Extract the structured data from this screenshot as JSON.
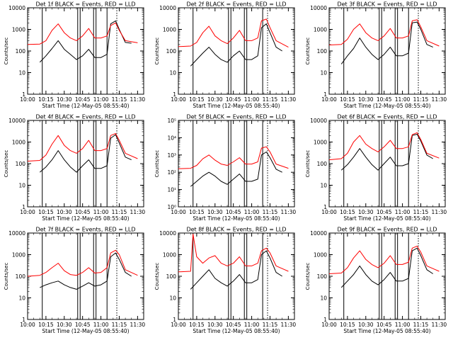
{
  "figure": {
    "grid": "3x3",
    "xlabel": "Start Time (12-May-05 08:55:40)",
    "ylabel": "Counts/sec",
    "x_ticks": [
      "10:00",
      "10:15",
      "10:30",
      "10:45",
      "11:00",
      "11:15",
      "11:30"
    ],
    "y_ticks_decimal": [
      "1",
      "10",
      "100",
      "1000",
      "10000"
    ],
    "y_ticks_exp": [
      "10⁰",
      "10¹",
      "10²",
      "10³",
      "10⁴",
      "10⁵"
    ],
    "events_color": "#000000",
    "lld_color": "#ff0000"
  },
  "chart_data": [
    {
      "type": "line",
      "title": "Det 1f BLACK = Events, RED = LLD",
      "xlim": [
        "10:00",
        "11:35"
      ],
      "ylim": [
        1,
        10000
      ],
      "ylog": true,
      "y_tick_style": "decimal",
      "vlines_solid": [
        "10:12",
        "10:41",
        "10:43",
        "10:54",
        "10:56",
        "11:05"
      ],
      "vlines_dotted": [
        "11:13"
      ],
      "series": [
        {
          "name": "Events",
          "color": "#000000",
          "x": [
            "10:10",
            "10:15",
            "10:20",
            "10:25",
            "10:30",
            "10:35",
            "10:40",
            "10:45",
            "10:50",
            "10:55",
            "11:00",
            "11:05",
            "11:08",
            "11:12",
            "11:15",
            "11:20",
            "11:25"
          ],
          "y": [
            30,
            60,
            130,
            300,
            120,
            70,
            40,
            60,
            120,
            50,
            50,
            70,
            1800,
            2500,
            1000,
            250,
            230
          ]
        },
        {
          "name": "LLD",
          "color": "#ff0000",
          "x": [
            "10:00",
            "10:10",
            "10:15",
            "10:20",
            "10:25",
            "10:30",
            "10:35",
            "10:40",
            "10:45",
            "10:50",
            "10:55",
            "11:00",
            "11:05",
            "11:08",
            "11:12",
            "11:15",
            "11:20",
            "11:30"
          ],
          "y": [
            200,
            210,
            300,
            900,
            1800,
            700,
            400,
            300,
            500,
            1100,
            400,
            400,
            500,
            1500,
            2000,
            900,
            300,
            240
          ]
        }
      ]
    },
    {
      "type": "line",
      "title": "Det 2f BLACK = Events, RED = LLD",
      "xlim": [
        "10:00",
        "11:35"
      ],
      "ylim": [
        1,
        10000
      ],
      "ylog": true,
      "y_tick_style": "decimal",
      "vlines_solid": [
        "10:12",
        "10:41",
        "10:43",
        "10:54",
        "10:56",
        "11:09"
      ],
      "vlines_dotted": [
        "11:13"
      ],
      "series": [
        {
          "name": "Events",
          "color": "#000000",
          "x": [
            "10:10",
            "10:15",
            "10:20",
            "10:25",
            "10:30",
            "10:35",
            "10:40",
            "10:45",
            "10:50",
            "10:55",
            "11:00",
            "11:05",
            "11:08",
            "11:12",
            "11:15",
            "11:20",
            "11:25"
          ],
          "y": [
            20,
            40,
            80,
            150,
            70,
            40,
            30,
            60,
            100,
            40,
            40,
            60,
            1200,
            1800,
            700,
            150,
            100
          ]
        },
        {
          "name": "LLD",
          "color": "#ff0000",
          "x": [
            "10:00",
            "10:10",
            "10:15",
            "10:20",
            "10:25",
            "10:30",
            "10:35",
            "10:40",
            "10:45",
            "10:50",
            "10:55",
            "11:00",
            "11:05",
            "11:08",
            "11:12",
            "11:15",
            "11:20",
            "11:30"
          ],
          "y": [
            160,
            170,
            250,
            700,
            1400,
            500,
            300,
            220,
            400,
            900,
            300,
            300,
            400,
            2500,
            3000,
            1200,
            300,
            150
          ]
        }
      ]
    },
    {
      "type": "line",
      "title": "Det 3f BLACK = Events, RED = LLD",
      "xlim": [
        "10:00",
        "11:35"
      ],
      "ylim": [
        1,
        10000
      ],
      "ylog": true,
      "y_tick_style": "decimal",
      "vlines_solid": [
        "10:12",
        "10:41",
        "10:43",
        "10:54",
        "10:56",
        "11:05"
      ],
      "vlines_dotted": [
        "11:13"
      ],
      "series": [
        {
          "name": "Events",
          "color": "#000000",
          "x": [
            "10:10",
            "10:15",
            "10:20",
            "10:25",
            "10:30",
            "10:35",
            "10:40",
            "10:45",
            "10:50",
            "10:55",
            "11:00",
            "11:05",
            "11:08",
            "11:12",
            "11:15",
            "11:20",
            "11:25"
          ],
          "y": [
            25,
            60,
            130,
            400,
            150,
            70,
            40,
            70,
            150,
            60,
            60,
            80,
            2000,
            2200,
            1000,
            200,
            150
          ]
        },
        {
          "name": "LLD",
          "color": "#ff0000",
          "x": [
            "10:00",
            "10:10",
            "10:15",
            "10:20",
            "10:25",
            "10:30",
            "10:35",
            "10:40",
            "10:45",
            "10:50",
            "10:55",
            "11:00",
            "11:05",
            "11:08",
            "11:12",
            "11:15",
            "11:20",
            "11:30"
          ],
          "y": [
            190,
            200,
            350,
            1000,
            1800,
            700,
            400,
            300,
            500,
            1100,
            400,
            400,
            500,
            2500,
            2800,
            1300,
            300,
            170
          ]
        }
      ]
    },
    {
      "type": "line",
      "title": "Det 4f BLACK = Events, RED = LLD",
      "xlim": [
        "10:00",
        "11:35"
      ],
      "ylim": [
        1,
        10000
      ],
      "ylog": true,
      "y_tick_style": "decimal",
      "vlines_solid": [
        "10:12",
        "10:41",
        "10:43",
        "10:54",
        "10:56",
        "11:05"
      ],
      "vlines_dotted": [
        "11:13"
      ],
      "series": [
        {
          "name": "Events",
          "color": "#000000",
          "x": [
            "10:10",
            "10:15",
            "10:20",
            "10:25",
            "10:30",
            "10:35",
            "10:40",
            "10:45",
            "10:50",
            "10:55",
            "11:00",
            "11:05",
            "11:08",
            "11:12",
            "11:15",
            "11:20",
            "11:25"
          ],
          "y": [
            40,
            70,
            150,
            400,
            150,
            70,
            40,
            80,
            150,
            60,
            60,
            80,
            1500,
            2200,
            900,
            200,
            150
          ]
        },
        {
          "name": "LLD",
          "color": "#ff0000",
          "x": [
            "10:00",
            "10:10",
            "10:15",
            "10:20",
            "10:25",
            "10:30",
            "10:35",
            "10:40",
            "10:45",
            "10:50",
            "10:55",
            "11:00",
            "11:05",
            "11:08",
            "11:12",
            "11:15",
            "11:20",
            "11:30"
          ],
          "y": [
            130,
            140,
            250,
            800,
            2000,
            700,
            400,
            300,
            500,
            1200,
            400,
            400,
            500,
            2000,
            2500,
            1200,
            300,
            170
          ]
        }
      ]
    },
    {
      "type": "line",
      "title": "Det 5f BLACK = Events, RED = LLD",
      "xlim": [
        "10:00",
        "11:35"
      ],
      "ylim": [
        1,
        100000
      ],
      "ylog": true,
      "y_tick_style": "exponent",
      "vlines_solid": [
        "10:12",
        "10:41",
        "10:43",
        "10:54",
        "10:56",
        "11:09"
      ],
      "vlines_dotted": [
        "11:13"
      ],
      "series": [
        {
          "name": "Events",
          "color": "#000000",
          "x": [
            "10:10",
            "10:15",
            "10:20",
            "10:25",
            "10:30",
            "10:35",
            "10:40",
            "10:45",
            "10:50",
            "10:55",
            "11:00",
            "11:05",
            "11:08",
            "11:12",
            "11:15",
            "11:20",
            "11:25"
          ],
          "y": [
            15,
            30,
            60,
            100,
            60,
            30,
            20,
            40,
            80,
            30,
            30,
            40,
            1000,
            1500,
            700,
            150,
            100
          ]
        },
        {
          "name": "LLD",
          "color": "#ff0000",
          "x": [
            "10:00",
            "10:10",
            "10:15",
            "10:20",
            "10:25",
            "10:30",
            "10:35",
            "10:40",
            "10:45",
            "10:50",
            "10:55",
            "11:00",
            "11:05",
            "11:08",
            "11:12",
            "11:15",
            "11:20",
            "11:30"
          ],
          "y": [
            160,
            170,
            250,
            600,
            1000,
            500,
            300,
            250,
            400,
            700,
            300,
            300,
            400,
            2500,
            3000,
            1500,
            300,
            170
          ]
        }
      ]
    },
    {
      "type": "line",
      "title": "Det 6f BLACK = Events, RED = LLD",
      "xlim": [
        "10:00",
        "11:35"
      ],
      "ylim": [
        1,
        10000
      ],
      "ylog": true,
      "y_tick_style": "decimal",
      "vlines_solid": [
        "10:12",
        "10:41",
        "10:43",
        "10:54",
        "10:56",
        "11:05"
      ],
      "vlines_dotted": [
        "11:13"
      ],
      "series": [
        {
          "name": "Events",
          "color": "#000000",
          "x": [
            "10:10",
            "10:15",
            "10:20",
            "10:25",
            "10:30",
            "10:35",
            "10:40",
            "10:45",
            "10:50",
            "10:55",
            "11:00",
            "11:05",
            "11:08",
            "11:12",
            "11:15",
            "11:20",
            "11:25"
          ],
          "y": [
            50,
            90,
            200,
            500,
            200,
            90,
            50,
            100,
            200,
            80,
            80,
            100,
            2000,
            2300,
            1100,
            250,
            170
          ]
        },
        {
          "name": "LLD",
          "color": "#ff0000",
          "x": [
            "10:00",
            "10:10",
            "10:15",
            "10:20",
            "10:25",
            "10:30",
            "10:35",
            "10:40",
            "10:45",
            "10:50",
            "10:55",
            "11:00",
            "11:05",
            "11:08",
            "11:12",
            "11:15",
            "11:20",
            "11:30"
          ],
          "y": [
            150,
            170,
            300,
            1000,
            2000,
            800,
            500,
            350,
            600,
            1200,
            500,
            500,
            600,
            2200,
            2700,
            1300,
            300,
            180
          ]
        }
      ]
    },
    {
      "type": "line",
      "title": "Det 7f BLACK = Events, RED = LLD",
      "xlim": [
        "10:00",
        "11:35"
      ],
      "ylim": [
        1,
        10000
      ],
      "ylog": true,
      "y_tick_style": "decimal",
      "vlines_solid": [
        "10:12",
        "10:41",
        "10:43",
        "10:54",
        "10:56",
        "11:05"
      ],
      "vlines_dotted": [
        "11:13"
      ],
      "series": [
        {
          "name": "Events",
          "color": "#000000",
          "x": [
            "10:10",
            "10:15",
            "10:20",
            "10:25",
            "10:30",
            "10:35",
            "10:40",
            "10:45",
            "10:50",
            "10:55",
            "11:00",
            "11:05",
            "11:08",
            "11:12",
            "11:15",
            "11:20",
            "11:25"
          ],
          "y": [
            30,
            40,
            50,
            60,
            40,
            30,
            25,
            35,
            50,
            35,
            40,
            60,
            800,
            1200,
            600,
            150,
            100
          ]
        },
        {
          "name": "LLD",
          "color": "#ff0000",
          "x": [
            "10:00",
            "10:10",
            "10:15",
            "10:20",
            "10:25",
            "10:30",
            "10:35",
            "10:40",
            "10:45",
            "10:50",
            "10:55",
            "11:00",
            "11:05",
            "11:08",
            "11:12",
            "11:15",
            "11:20",
            "11:30"
          ],
          "y": [
            100,
            110,
            150,
            250,
            400,
            180,
            120,
            110,
            150,
            250,
            140,
            150,
            250,
            1200,
            1600,
            1000,
            200,
            110
          ]
        }
      ]
    },
    {
      "type": "line",
      "title": "Det 8f BLACK = Events, RED = LLD",
      "xlim": [
        "10:00",
        "11:35"
      ],
      "ylim": [
        1,
        10000
      ],
      "ylog": true,
      "y_tick_style": "decimal",
      "vlines_solid": [
        "10:12",
        "10:41",
        "10:43",
        "10:54",
        "10:56",
        "11:09"
      ],
      "vlines_dotted": [
        "11:13"
      ],
      "series": [
        {
          "name": "Events",
          "color": "#000000",
          "x": [
            "10:10",
            "10:15",
            "10:20",
            "10:25",
            "10:30",
            "10:35",
            "10:40",
            "10:45",
            "10:50",
            "10:55",
            "11:00",
            "11:05",
            "11:08",
            "11:12",
            "11:15",
            "11:20",
            "11:25"
          ],
          "y": [
            25,
            50,
            100,
            200,
            80,
            50,
            35,
            60,
            120,
            50,
            50,
            70,
            1000,
            1500,
            700,
            150,
            100
          ]
        },
        {
          "name": "LLD",
          "color": "#ff0000",
          "x": [
            "10:00",
            "10:10",
            "10:12",
            "10:15",
            "10:20",
            "10:25",
            "10:30",
            "10:35",
            "10:40",
            "10:45",
            "10:50",
            "10:55",
            "11:00",
            "11:05",
            "11:08",
            "11:12",
            "11:15",
            "11:20",
            "11:30"
          ],
          "y": [
            160,
            170,
            9000,
            800,
            400,
            700,
            900,
            400,
            300,
            400,
            800,
            300,
            300,
            400,
            1500,
            2000,
            1200,
            300,
            170
          ]
        }
      ]
    },
    {
      "type": "line",
      "title": "Det 9f BLACK = Events, RED = LLD",
      "xlim": [
        "10:00",
        "11:35"
      ],
      "ylim": [
        1,
        10000
      ],
      "ylog": true,
      "y_tick_style": "decimal",
      "vlines_solid": [
        "10:12",
        "10:41",
        "10:43",
        "10:54",
        "10:56",
        "11:05"
      ],
      "vlines_dotted": [
        "11:13"
      ],
      "series": [
        {
          "name": "Events",
          "color": "#000000",
          "x": [
            "10:10",
            "10:15",
            "10:20",
            "10:25",
            "10:30",
            "10:35",
            "10:40",
            "10:45",
            "10:50",
            "10:55",
            "11:00",
            "11:05",
            "11:08",
            "11:12",
            "11:15",
            "11:20",
            "11:25"
          ],
          "y": [
            30,
            60,
            120,
            300,
            120,
            60,
            40,
            70,
            150,
            60,
            60,
            80,
            1500,
            2000,
            900,
            200,
            130
          ]
        },
        {
          "name": "LLD",
          "color": "#ff0000",
          "x": [
            "10:00",
            "10:10",
            "10:15",
            "10:20",
            "10:25",
            "10:30",
            "10:35",
            "10:40",
            "10:45",
            "10:50",
            "10:55",
            "11:00",
            "11:05",
            "11:08",
            "11:12",
            "11:15",
            "11:20",
            "11:30"
          ],
          "y": [
            130,
            140,
            250,
            700,
            1500,
            600,
            350,
            250,
            400,
            900,
            350,
            350,
            450,
            2000,
            2500,
            1300,
            300,
            170
          ]
        }
      ]
    }
  ]
}
